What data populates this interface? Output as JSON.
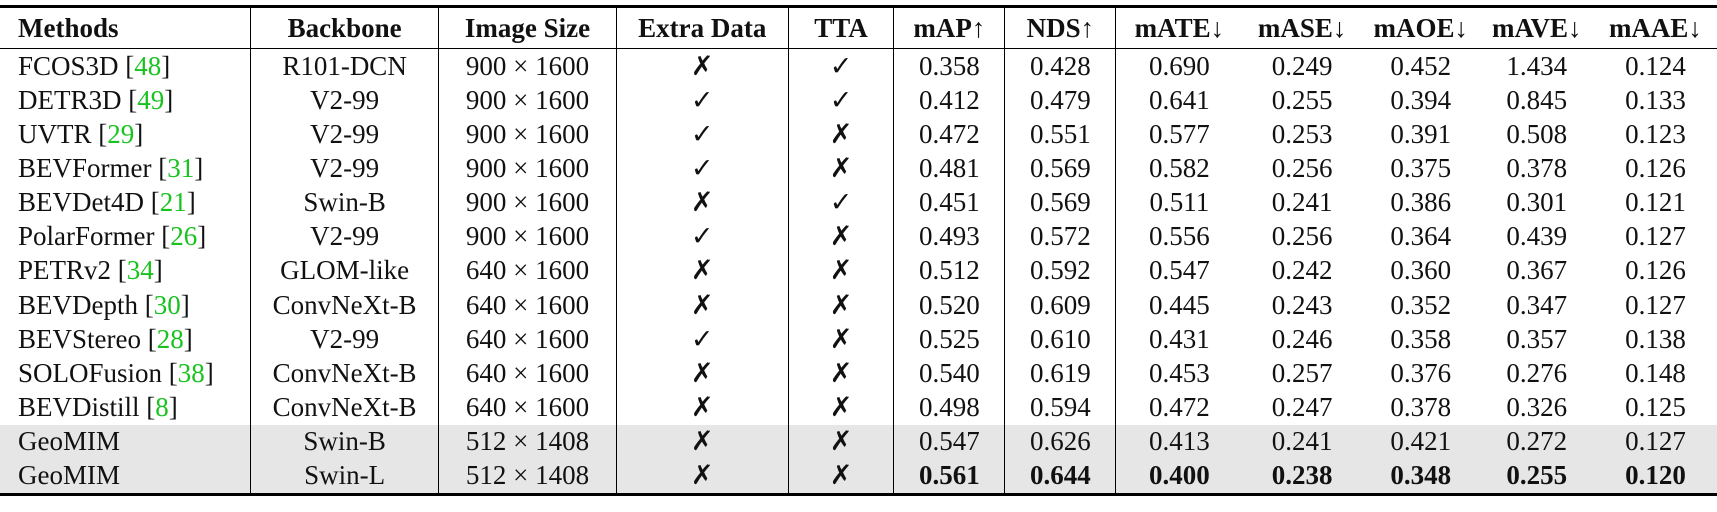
{
  "headers": [
    "Methods",
    "Backbone",
    "Image Size",
    "Extra Data",
    "TTA",
    "mAP↑",
    "NDS↑",
    "mATE↓",
    "mASE↓",
    "mAOE↓",
    "mAVE↓",
    "mAAE↓"
  ],
  "rows": [
    {
      "method": "FCOS3D",
      "ref": "48",
      "backbone": "R101-DCN",
      "size": "900 × 1600",
      "extra": "✗",
      "tta": "✓",
      "vals": [
        "0.358",
        "0.428",
        "0.690",
        "0.249",
        "0.452",
        "1.434",
        "0.124"
      ],
      "highlight": false,
      "bold": false
    },
    {
      "method": "DETR3D",
      "ref": "49",
      "backbone": "V2-99",
      "size": "900 × 1600",
      "extra": "✓",
      "tta": "✓",
      "vals": [
        "0.412",
        "0.479",
        "0.641",
        "0.255",
        "0.394",
        "0.845",
        "0.133"
      ],
      "highlight": false,
      "bold": false
    },
    {
      "method": "UVTR",
      "ref": "29",
      "backbone": "V2-99",
      "size": "900 × 1600",
      "extra": "✓",
      "tta": "✗",
      "vals": [
        "0.472",
        "0.551",
        "0.577",
        "0.253",
        "0.391",
        "0.508",
        "0.123"
      ],
      "highlight": false,
      "bold": false
    },
    {
      "method": "BEVFormer",
      "ref": "31",
      "backbone": "V2-99",
      "size": "900 × 1600",
      "extra": "✓",
      "tta": "✗",
      "vals": [
        "0.481",
        "0.569",
        "0.582",
        "0.256",
        "0.375",
        "0.378",
        "0.126"
      ],
      "highlight": false,
      "bold": false
    },
    {
      "method": "BEVDet4D",
      "ref": "21",
      "backbone": "Swin-B",
      "size": "900 × 1600",
      "extra": "✗",
      "tta": "✓",
      "vals": [
        "0.451",
        "0.569",
        "0.511",
        "0.241",
        "0.386",
        "0.301",
        "0.121"
      ],
      "highlight": false,
      "bold": false
    },
    {
      "method": "PolarFormer",
      "ref": "26",
      "backbone": "V2-99",
      "size": "900 × 1600",
      "extra": "✓",
      "tta": "✗",
      "vals": [
        "0.493",
        "0.572",
        "0.556",
        "0.256",
        "0.364",
        "0.439",
        "0.127"
      ],
      "highlight": false,
      "bold": false
    },
    {
      "method": "PETRv2",
      "ref": "34",
      "backbone": "GLOM-like",
      "size": "640 × 1600",
      "extra": "✗",
      "tta": "✗",
      "vals": [
        "0.512",
        "0.592",
        "0.547",
        "0.242",
        "0.360",
        "0.367",
        "0.126"
      ],
      "highlight": false,
      "bold": false
    },
    {
      "method": "BEVDepth",
      "ref": "30",
      "backbone": "ConvNeXt-B",
      "size": "640 × 1600",
      "extra": "✗",
      "tta": "✗",
      "vals": [
        "0.520",
        "0.609",
        "0.445",
        "0.243",
        "0.352",
        "0.347",
        "0.127"
      ],
      "highlight": false,
      "bold": false
    },
    {
      "method": "BEVStereo",
      "ref": "28",
      "backbone": "V2-99",
      "size": "640 × 1600",
      "extra": "✓",
      "tta": "✗",
      "vals": [
        "0.525",
        "0.610",
        "0.431",
        "0.246",
        "0.358",
        "0.357",
        "0.138"
      ],
      "highlight": false,
      "bold": false
    },
    {
      "method": "SOLOFusion",
      "ref": "38",
      "backbone": "ConvNeXt-B",
      "size": "640 × 1600",
      "extra": "✗",
      "tta": "✗",
      "vals": [
        "0.540",
        "0.619",
        "0.453",
        "0.257",
        "0.376",
        "0.276",
        "0.148"
      ],
      "highlight": false,
      "bold": false
    },
    {
      "method": "BEVDistill",
      "ref": "8",
      "backbone": "ConvNeXt-B",
      "size": "640 × 1600",
      "extra": "✗",
      "tta": "✗",
      "vals": [
        "0.498",
        "0.594",
        "0.472",
        "0.247",
        "0.378",
        "0.326",
        "0.125"
      ],
      "highlight": false,
      "bold": false
    },
    {
      "method": "GeoMIM",
      "ref": "",
      "backbone": "Swin-B",
      "size": "512 × 1408",
      "extra": "✗",
      "tta": "✗",
      "vals": [
        "0.547",
        "0.626",
        "0.413",
        "0.241",
        "0.421",
        "0.272",
        "0.127"
      ],
      "highlight": true,
      "bold": false
    },
    {
      "method": "GeoMIM",
      "ref": "",
      "backbone": "Swin-L",
      "size": "512 × 1408",
      "extra": "✗",
      "tta": "✗",
      "vals": [
        "0.561",
        "0.644",
        "0.400",
        "0.238",
        "0.348",
        "0.255",
        "0.120"
      ],
      "highlight": true,
      "bold": true
    }
  ],
  "colors": {
    "ref": "#19c21f",
    "highlight": "#e6e6e6"
  }
}
